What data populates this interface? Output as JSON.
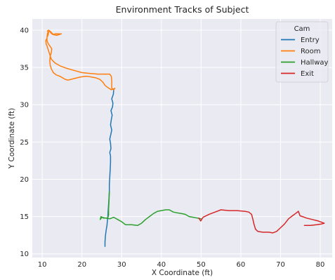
{
  "chart_data": {
    "type": "line",
    "title": "Environment Tracks of Subject",
    "xlabel": "X Coordinate (ft)",
    "ylabel": "Y Coordinate (ft)",
    "xlim": [
      7.5,
      83
    ],
    "ylim": [
      9.5,
      41.5
    ],
    "xticks": [
      10,
      20,
      30,
      40,
      50,
      60,
      70,
      80
    ],
    "yticks": [
      10,
      15,
      20,
      25,
      30,
      35,
      40
    ],
    "grid": true,
    "background": "#eaeaf2",
    "legend": {
      "title": "Cam",
      "position": "top-right"
    },
    "series": [
      {
        "name": "Entry",
        "color": "#1f77b4",
        "points": [
          [
            25.8,
            11.0
          ],
          [
            25.8,
            11.6
          ],
          [
            25.9,
            12.4
          ],
          [
            26.1,
            13.2
          ],
          [
            26.3,
            13.8
          ],
          [
            26.4,
            14.4
          ],
          [
            26.5,
            15.0
          ],
          [
            26.6,
            15.8
          ],
          [
            26.7,
            16.6
          ],
          [
            26.8,
            17.5
          ],
          [
            26.9,
            18.4
          ],
          [
            26.9,
            19.3
          ],
          [
            27.0,
            20.3
          ],
          [
            27.1,
            21.3
          ],
          [
            27.2,
            22.3
          ],
          [
            27.2,
            23.1
          ],
          [
            27.0,
            23.6
          ],
          [
            27.3,
            24.1
          ],
          [
            27.2,
            24.8
          ],
          [
            27.0,
            25.4
          ],
          [
            27.3,
            26.1
          ],
          [
            27.5,
            26.6
          ],
          [
            27.2,
            27.3
          ],
          [
            27.4,
            28.0
          ],
          [
            27.6,
            28.6
          ],
          [
            27.3,
            29.2
          ],
          [
            27.7,
            29.7
          ],
          [
            27.8,
            30.2
          ],
          [
            27.5,
            30.8
          ],
          [
            27.9,
            31.4
          ],
          [
            28.0,
            32.0
          ]
        ]
      },
      {
        "name": "Room",
        "color": "#ff7f0e",
        "points": [
          [
            28.0,
            32.0
          ],
          [
            28.3,
            32.2
          ],
          [
            27.4,
            32.0
          ],
          [
            26.5,
            32.3
          ],
          [
            25.8,
            32.6
          ],
          [
            25.3,
            33.0
          ],
          [
            24.5,
            33.4
          ],
          [
            23.5,
            33.6
          ],
          [
            22.5,
            33.7
          ],
          [
            21.5,
            33.8
          ],
          [
            20.8,
            33.8
          ],
          [
            19.5,
            33.7
          ],
          [
            18.0,
            33.5
          ],
          [
            16.5,
            33.3
          ],
          [
            15.8,
            33.4
          ],
          [
            14.5,
            33.8
          ],
          [
            13.5,
            34.0
          ],
          [
            12.8,
            34.3
          ],
          [
            12.3,
            34.8
          ],
          [
            12.0,
            35.3
          ],
          [
            11.9,
            35.9
          ],
          [
            12.0,
            36.5
          ],
          [
            12.3,
            37.0
          ],
          [
            12.4,
            37.5
          ],
          [
            12.0,
            37.8
          ],
          [
            11.5,
            38.2
          ],
          [
            11.2,
            38.6
          ],
          [
            11.2,
            39.0
          ],
          [
            11.5,
            39.4
          ],
          [
            11.6,
            39.7
          ],
          [
            11.3,
            39.9
          ],
          [
            11.8,
            39.9
          ],
          [
            12.2,
            39.6
          ],
          [
            12.7,
            39.4
          ],
          [
            13.2,
            39.5
          ],
          [
            13.8,
            39.5
          ],
          [
            14.8,
            39.5
          ],
          [
            13.6,
            39.3
          ],
          [
            12.8,
            39.4
          ],
          [
            12.1,
            39.8
          ],
          [
            11.6,
            40.0
          ],
          [
            11.3,
            39.5
          ],
          [
            11.2,
            38.9
          ],
          [
            10.9,
            38.6
          ],
          [
            11.0,
            38.1
          ],
          [
            11.2,
            37.9
          ],
          [
            11.5,
            37.4
          ],
          [
            11.8,
            36.9
          ],
          [
            12.3,
            36.1
          ],
          [
            13.2,
            35.6
          ],
          [
            14.5,
            35.2
          ],
          [
            16.0,
            34.9
          ],
          [
            18.0,
            34.6
          ],
          [
            20.0,
            34.3
          ],
          [
            22.0,
            34.2
          ],
          [
            24.0,
            34.1
          ],
          [
            26.0,
            34.1
          ],
          [
            27.0,
            34.1
          ],
          [
            27.4,
            33.8
          ],
          [
            27.5,
            33.2
          ],
          [
            27.5,
            32.6
          ],
          [
            27.5,
            32.2
          ],
          [
            28.0,
            32.0
          ]
        ]
      },
      {
        "name": "Hallway",
        "color": "#2ca02c",
        "points": [
          [
            26.9,
            18.3
          ],
          [
            26.8,
            17.0
          ],
          [
            26.7,
            16.0
          ],
          [
            26.7,
            15.2
          ],
          [
            26.5,
            14.8
          ],
          [
            25.8,
            14.8
          ],
          [
            25.0,
            14.9
          ],
          [
            24.6,
            14.6
          ],
          [
            24.8,
            15.0
          ],
          [
            25.4,
            14.8
          ],
          [
            26.0,
            14.8
          ],
          [
            27.0,
            14.7
          ],
          [
            28.0,
            14.9
          ],
          [
            29.0,
            14.6
          ],
          [
            30.0,
            14.3
          ],
          [
            31.0,
            13.9
          ],
          [
            32.5,
            13.9
          ],
          [
            34.0,
            13.8
          ],
          [
            35.0,
            14.1
          ],
          [
            36.0,
            14.6
          ],
          [
            37.0,
            15.0
          ],
          [
            38.0,
            15.4
          ],
          [
            39.0,
            15.7
          ],
          [
            40.0,
            15.8
          ],
          [
            41.0,
            15.9
          ],
          [
            42.0,
            15.9
          ],
          [
            43.0,
            15.6
          ],
          [
            44.0,
            15.5
          ],
          [
            45.0,
            15.4
          ],
          [
            46.0,
            15.3
          ],
          [
            47.0,
            15.0
          ],
          [
            48.0,
            14.9
          ],
          [
            49.0,
            14.8
          ],
          [
            50.0,
            14.7
          ]
        ]
      },
      {
        "name": "Exit",
        "color": "#d62728",
        "points": [
          [
            49.4,
            14.8
          ],
          [
            49.9,
            14.4
          ],
          [
            50.5,
            14.9
          ],
          [
            52.0,
            15.3
          ],
          [
            53.5,
            15.6
          ],
          [
            55.0,
            15.9
          ],
          [
            57.0,
            15.8
          ],
          [
            59.0,
            15.8
          ],
          [
            61.0,
            15.7
          ],
          [
            62.0,
            15.6
          ],
          [
            62.7,
            15.3
          ],
          [
            63.0,
            14.7
          ],
          [
            63.3,
            14.0
          ],
          [
            63.7,
            13.3
          ],
          [
            64.3,
            13.0
          ],
          [
            65.5,
            12.9
          ],
          [
            67.0,
            12.9
          ],
          [
            68.0,
            12.8
          ],
          [
            69.0,
            13.0
          ],
          [
            70.0,
            13.5
          ],
          [
            71.0,
            14.0
          ],
          [
            72.0,
            14.7
          ],
          [
            73.0,
            15.1
          ],
          [
            74.0,
            15.5
          ],
          [
            74.5,
            15.7
          ],
          [
            74.9,
            15.1
          ],
          [
            75.5,
            15.0
          ],
          [
            76.5,
            14.8
          ],
          [
            78.0,
            14.6
          ],
          [
            79.5,
            14.4
          ],
          [
            80.5,
            14.2
          ],
          [
            81.0,
            14.1
          ],
          [
            80.3,
            14.0
          ],
          [
            79.0,
            13.9
          ],
          [
            77.5,
            13.8
          ],
          [
            76.0,
            13.8
          ]
        ]
      }
    ]
  }
}
